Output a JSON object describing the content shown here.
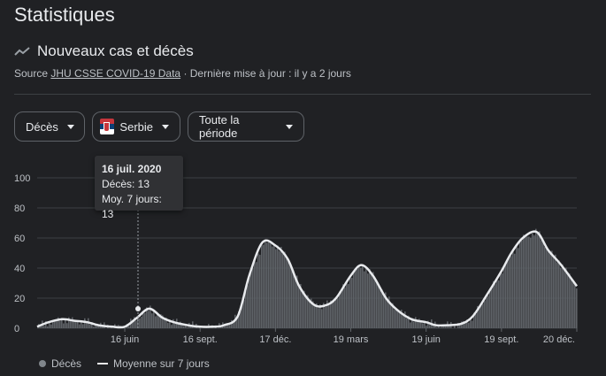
{
  "header": {
    "title": "Statistiques"
  },
  "section": {
    "title": "Nouveaux cas et décès",
    "source_prefix": "Source",
    "source_link": "JHU CSSE COVID-19 Data",
    "updated": "· Dernière mise à jour : il y a 2 jours"
  },
  "filters": {
    "metric": "Décès",
    "country": "Serbie",
    "period": "Toute la période"
  },
  "tooltip": {
    "date": "16 juil. 2020",
    "deaths": "Décès: 13",
    "avg": "Moy. 7 jours: 13"
  },
  "legend": {
    "deaths": "Décès",
    "avg": "Moyenne sur 7 jours"
  },
  "colors": {
    "bars": "#5f6368",
    "line": "#e8eaed",
    "grid": "#3c4043"
  },
  "chart_data": {
    "type": "bar",
    "title": "",
    "xlabel": "",
    "ylabel": "",
    "ylim": [
      0,
      100
    ],
    "y_ticks": [
      "0",
      "20",
      "40",
      "60",
      "80",
      "100"
    ],
    "x_tick_labels": [
      "16 juin",
      "16 sept.",
      "17 déc.",
      "19 mars",
      "19 juin",
      "19 sept.",
      "20 déc."
    ],
    "grid": true,
    "legend_placement": "bottom-left",
    "series": [
      {
        "name": "Moyenne sur 7 jours",
        "x": [
          "2020-03-01",
          "2020-03-15",
          "2020-04-01",
          "2020-04-15",
          "2020-05-01",
          "2020-05-15",
          "2020-06-01",
          "2020-06-16",
          "2020-07-01",
          "2020-07-16",
          "2020-08-01",
          "2020-08-15",
          "2020-09-01",
          "2020-09-16",
          "2020-10-01",
          "2020-10-15",
          "2020-11-01",
          "2020-11-15",
          "2020-12-01",
          "2020-12-17",
          "2021-01-01",
          "2021-01-15",
          "2021-02-01",
          "2021-02-15",
          "2021-03-01",
          "2021-03-19",
          "2021-04-01",
          "2021-04-15",
          "2021-05-01",
          "2021-05-15",
          "2021-06-01",
          "2021-06-19",
          "2021-07-01",
          "2021-07-15",
          "2021-08-01",
          "2021-08-15",
          "2021-09-01",
          "2021-09-19",
          "2021-10-01",
          "2021-10-15",
          "2021-11-01",
          "2021-11-15",
          "2021-12-01",
          "2021-12-20"
        ],
        "values": [
          1,
          4,
          6,
          5,
          4,
          2,
          1,
          1,
          7,
          13,
          7,
          4,
          2,
          1,
          1,
          2,
          8,
          35,
          57,
          55,
          46,
          28,
          16,
          15,
          20,
          35,
          42,
          35,
          20,
          12,
          6,
          4,
          2,
          2,
          3,
          8,
          22,
          38,
          50,
          60,
          64,
          52,
          42,
          28
        ]
      }
    ]
  }
}
